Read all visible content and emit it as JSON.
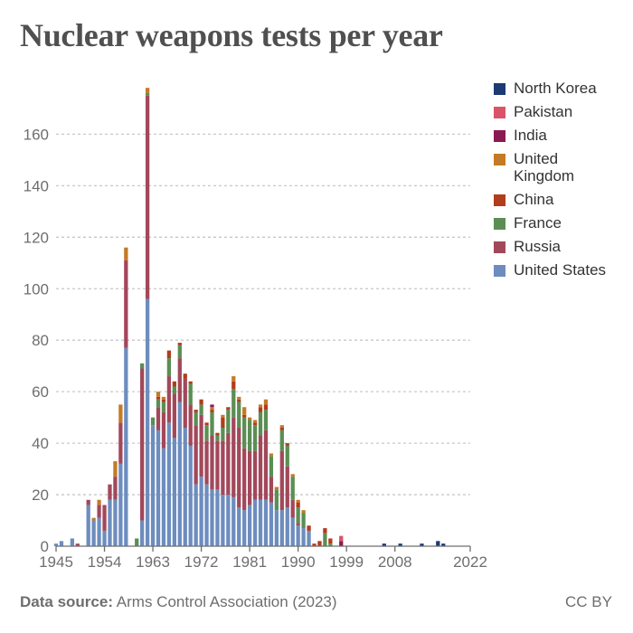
{
  "title": "Nuclear weapons tests per year",
  "footer": {
    "source_label": "Data source:",
    "source_text": "Arms Control Association (2023)",
    "license": "CC BY"
  },
  "chart_data": {
    "type": "bar",
    "stacked": true,
    "title": "Nuclear weapons tests per year",
    "xlabel": "",
    "ylabel": "",
    "xlim": [
      1945,
      2022
    ],
    "ylim": [
      0,
      180
    ],
    "x_ticks": [
      1945,
      1954,
      1963,
      1972,
      1981,
      1990,
      1999,
      2008,
      2022
    ],
    "y_ticks": [
      0,
      20,
      40,
      60,
      80,
      100,
      120,
      140,
      160
    ],
    "grid": "horizontal dashed",
    "legend_position": "right",
    "x": [
      1945,
      1946,
      1947,
      1948,
      1949,
      1950,
      1951,
      1952,
      1953,
      1954,
      1955,
      1956,
      1957,
      1958,
      1959,
      1960,
      1961,
      1962,
      1963,
      1964,
      1965,
      1966,
      1967,
      1968,
      1969,
      1970,
      1971,
      1972,
      1973,
      1974,
      1975,
      1976,
      1977,
      1978,
      1979,
      1980,
      1981,
      1982,
      1983,
      1984,
      1985,
      1986,
      1987,
      1988,
      1989,
      1990,
      1991,
      1992,
      1993,
      1994,
      1995,
      1996,
      1997,
      1998,
      1999,
      2000,
      2001,
      2002,
      2003,
      2004,
      2005,
      2006,
      2007,
      2008,
      2009,
      2010,
      2011,
      2012,
      2013,
      2014,
      2015,
      2016,
      2017,
      2018,
      2019,
      2020,
      2021,
      2022
    ],
    "series": [
      {
        "name": "United States",
        "color": "#6d8dbe",
        "values": [
          1,
          2,
          0,
          3,
          0,
          0,
          16,
          10,
          11,
          6,
          18,
          18,
          32,
          77,
          0,
          0,
          10,
          96,
          47,
          45,
          38,
          48,
          42,
          56,
          46,
          39,
          24,
          27,
          24,
          22,
          22,
          20,
          20,
          19,
          15,
          14,
          16,
          18,
          18,
          18,
          17,
          14,
          14,
          15,
          11,
          8,
          7,
          6,
          0,
          0,
          0,
          0,
          0,
          0,
          0,
          0,
          0,
          0,
          0,
          0,
          0,
          0,
          0,
          0,
          0,
          0,
          0,
          0,
          0,
          0,
          0,
          0,
          0,
          0,
          0,
          0,
          0,
          0
        ]
      },
      {
        "name": "Russia",
        "color": "#a2485b",
        "values": [
          0,
          0,
          0,
          0,
          1,
          0,
          2,
          0,
          5,
          10,
          6,
          9,
          16,
          34,
          0,
          0,
          59,
          79,
          0,
          9,
          14,
          18,
          17,
          17,
          19,
          16,
          23,
          24,
          17,
          21,
          19,
          21,
          24,
          31,
          31,
          24,
          21,
          19,
          25,
          27,
          10,
          0,
          23,
          16,
          7,
          1,
          0,
          0,
          0,
          0,
          0,
          0,
          0,
          0,
          0,
          0,
          0,
          0,
          0,
          0,
          0,
          0,
          0,
          0,
          0,
          0,
          0,
          0,
          0,
          0,
          0,
          0,
          0,
          0,
          0,
          0,
          0,
          0
        ]
      },
      {
        "name": "France",
        "color": "#5b8e53",
        "values": [
          0,
          0,
          0,
          0,
          0,
          0,
          0,
          0,
          0,
          0,
          0,
          0,
          0,
          0,
          0,
          3,
          2,
          1,
          3,
          3,
          4,
          7,
          3,
          5,
          0,
          8,
          5,
          4,
          6,
          9,
          2,
          5,
          9,
          11,
          10,
          12,
          12,
          10,
          9,
          8,
          8,
          8,
          8,
          8,
          9,
          6,
          6,
          0,
          0,
          0,
          5,
          1,
          0,
          0,
          0,
          0,
          0,
          0,
          0,
          0,
          0,
          0,
          0,
          0,
          0,
          0,
          0,
          0,
          0,
          0,
          0,
          0,
          0,
          0,
          0,
          0,
          0,
          0
        ]
      },
      {
        "name": "China",
        "color": "#b13d1c",
        "values": [
          0,
          0,
          0,
          0,
          0,
          0,
          0,
          0,
          0,
          0,
          0,
          0,
          0,
          0,
          0,
          0,
          0,
          0,
          0,
          1,
          1,
          3,
          2,
          1,
          2,
          1,
          1,
          2,
          1,
          1,
          1,
          4,
          1,
          3,
          1,
          1,
          0,
          1,
          2,
          2,
          0,
          0,
          1,
          1,
          0,
          2,
          0,
          2,
          1,
          2,
          2,
          2,
          0,
          0,
          0,
          0,
          0,
          0,
          0,
          0,
          0,
          0,
          0,
          0,
          0,
          0,
          0,
          0,
          0,
          0,
          0,
          0,
          0,
          0,
          0,
          0,
          0,
          0
        ]
      },
      {
        "name": "United Kingdom",
        "color": "#c47a26",
        "values": [
          0,
          0,
          0,
          0,
          0,
          0,
          0,
          1,
          2,
          0,
          0,
          6,
          7,
          5,
          0,
          0,
          0,
          2,
          0,
          2,
          1,
          0,
          0,
          0,
          0,
          0,
          0,
          0,
          0,
          1,
          0,
          1,
          0,
          2,
          1,
          3,
          1,
          1,
          1,
          2,
          1,
          1,
          1,
          0,
          1,
          1,
          1,
          0,
          0,
          0,
          0,
          0,
          0,
          0,
          0,
          0,
          0,
          0,
          0,
          0,
          0,
          0,
          0,
          0,
          0,
          0,
          0,
          0,
          0,
          0,
          0,
          0,
          0,
          0,
          0,
          0,
          0,
          0
        ]
      },
      {
        "name": "India",
        "color": "#8a1a52",
        "values": [
          0,
          0,
          0,
          0,
          0,
          0,
          0,
          0,
          0,
          0,
          0,
          0,
          0,
          0,
          0,
          0,
          0,
          0,
          0,
          0,
          0,
          0,
          0,
          0,
          0,
          0,
          0,
          0,
          0,
          1,
          0,
          0,
          0,
          0,
          0,
          0,
          0,
          0,
          0,
          0,
          0,
          0,
          0,
          0,
          0,
          0,
          0,
          0,
          0,
          0,
          0,
          0,
          0,
          2,
          0,
          0,
          0,
          0,
          0,
          0,
          0,
          0,
          0,
          0,
          0,
          0,
          0,
          0,
          0,
          0,
          0,
          0,
          0,
          0,
          0,
          0,
          0,
          0
        ]
      },
      {
        "name": "Pakistan",
        "color": "#d95468",
        "values": [
          0,
          0,
          0,
          0,
          0,
          0,
          0,
          0,
          0,
          0,
          0,
          0,
          0,
          0,
          0,
          0,
          0,
          0,
          0,
          0,
          0,
          0,
          0,
          0,
          0,
          0,
          0,
          0,
          0,
          0,
          0,
          0,
          0,
          0,
          0,
          0,
          0,
          0,
          0,
          0,
          0,
          0,
          0,
          0,
          0,
          0,
          0,
          0,
          0,
          0,
          0,
          0,
          0,
          2,
          0,
          0,
          0,
          0,
          0,
          0,
          0,
          0,
          0,
          0,
          0,
          0,
          0,
          0,
          0,
          0,
          0,
          0,
          0,
          0,
          0,
          0,
          0,
          0
        ]
      },
      {
        "name": "North Korea",
        "color": "#1c3a73",
        "values": [
          0,
          0,
          0,
          0,
          0,
          0,
          0,
          0,
          0,
          0,
          0,
          0,
          0,
          0,
          0,
          0,
          0,
          0,
          0,
          0,
          0,
          0,
          0,
          0,
          0,
          0,
          0,
          0,
          0,
          0,
          0,
          0,
          0,
          0,
          0,
          0,
          0,
          0,
          0,
          0,
          0,
          0,
          0,
          0,
          0,
          0,
          0,
          0,
          0,
          0,
          0,
          0,
          0,
          0,
          0,
          0,
          0,
          0,
          0,
          0,
          0,
          1,
          0,
          0,
          1,
          0,
          0,
          0,
          1,
          0,
          0,
          2,
          1,
          0,
          0,
          0,
          0,
          0
        ]
      }
    ]
  }
}
